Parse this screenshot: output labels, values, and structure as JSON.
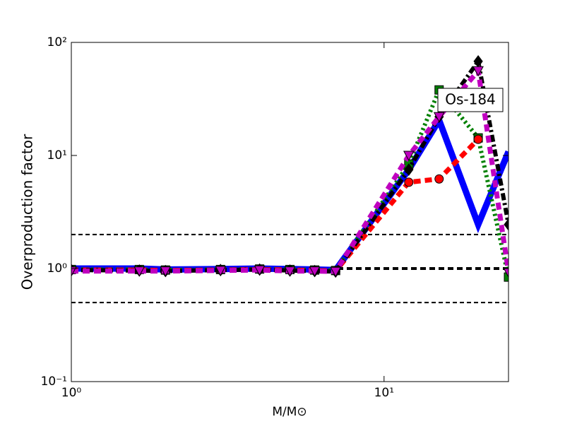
{
  "chart_data": {
    "type": "line",
    "xlabel": "M/M⊙",
    "ylabel": "Overproduction factor",
    "annotation": "Os-184",
    "xscale": "log",
    "yscale": "log",
    "xlim": [
      1,
      25
    ],
    "ylim": [
      0.1,
      100
    ],
    "xticks": [
      {
        "value": 1,
        "label": "10⁰"
      },
      {
        "value": 10,
        "label": "10¹"
      }
    ],
    "yticks": [
      {
        "value": 0.1,
        "label": "10⁻¹"
      },
      {
        "value": 1,
        "label": "10⁰"
      },
      {
        "value": 10,
        "label": "10¹"
      },
      {
        "value": 100,
        "label": "10²"
      }
    ],
    "hlines": [
      0.5,
      1,
      2
    ],
    "x": [
      1,
      1.65,
      2,
      3,
      4,
      5,
      6,
      7,
      12,
      15,
      20,
      25
    ],
    "series": [
      {
        "color": "#0000ff",
        "style": "solid",
        "marker": "none",
        "values": [
          1.0,
          1.0,
          0.98,
          0.99,
          1.0,
          0.99,
          0.98,
          0.97,
          7.5,
          20.5,
          2.45,
          10.8
        ]
      },
      {
        "color": "#008000",
        "style": "dotted",
        "marker": "square",
        "values": [
          0.98,
          0.98,
          0.97,
          0.98,
          0.99,
          0.98,
          0.97,
          0.96,
          8.4,
          38,
          14.3,
          0.84
        ]
      },
      {
        "color": "#ff0000",
        "style": "dashed",
        "marker": "circle",
        "values": [
          0.97,
          0.97,
          0.96,
          0.97,
          0.98,
          0.97,
          0.96,
          0.95,
          5.8,
          6.2,
          13.9,
          null
        ]
      },
      {
        "color": "#000000",
        "style": "dashdot",
        "marker": "diamond",
        "values": [
          0.97,
          0.96,
          0.95,
          0.97,
          0.98,
          0.96,
          0.95,
          0.94,
          7.5,
          22,
          68,
          2.45
        ]
      },
      {
        "color": "#bf00bf",
        "style": "dashed",
        "marker": "triangle-down",
        "values": [
          0.95,
          0.95,
          0.95,
          0.96,
          0.97,
          0.95,
          0.95,
          0.94,
          10,
          22,
          56,
          0.93
        ]
      }
    ]
  }
}
